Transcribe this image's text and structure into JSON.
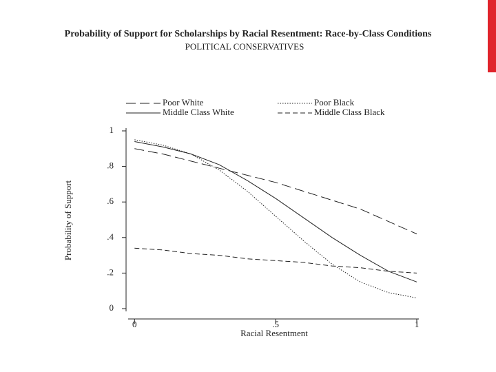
{
  "chart_data": {
    "type": "line",
    "title": "Probability of Support for Scholarships by Racial Resentment: Race-by-Class Conditions",
    "subtitle": "POLITICAL CONSERVATIVES",
    "x_label": "Racial Resentment",
    "y_label": "Probability of Support",
    "x": [
      0,
      0.1,
      0.2,
      0.3,
      0.4,
      0.5,
      0.6,
      0.7,
      0.8,
      0.9,
      1
    ],
    "series": [
      {
        "name": "Poor White",
        "color": "#222222",
        "style": "longdash",
        "values": [
          0.9,
          0.87,
          0.83,
          0.79,
          0.75,
          0.71,
          0.66,
          0.61,
          0.56,
          0.49,
          0.42
        ]
      },
      {
        "name": "Poor Black",
        "color": "#222222",
        "style": "dotted",
        "values": [
          0.95,
          0.92,
          0.87,
          0.78,
          0.66,
          0.52,
          0.38,
          0.25,
          0.15,
          0.09,
          0.06
        ]
      },
      {
        "name": "Middle Class White",
        "color": "#222222",
        "style": "solid",
        "values": [
          0.94,
          0.91,
          0.87,
          0.81,
          0.72,
          0.62,
          0.51,
          0.4,
          0.3,
          0.21,
          0.15
        ]
      },
      {
        "name": "Middle Class Black",
        "color": "#222222",
        "style": "dashed",
        "values": [
          0.34,
          0.33,
          0.31,
          0.3,
          0.28,
          0.27,
          0.26,
          0.24,
          0.23,
          0.21,
          0.2
        ]
      }
    ],
    "xlim": [
      -0.03,
      1
    ],
    "ylim": [
      0,
      1
    ],
    "xticks": [
      0,
      {
        "value": 0.5,
        "label": ".5"
      },
      1
    ],
    "yticks": [
      0,
      {
        "value": 0.2,
        "label": ".2"
      },
      {
        "value": 0.4,
        "label": ".4"
      },
      {
        "value": 0.6,
        "label": ".6"
      },
      {
        "value": 0.8,
        "label": ".8"
      },
      1
    ],
    "grid": false,
    "legend": "top"
  }
}
